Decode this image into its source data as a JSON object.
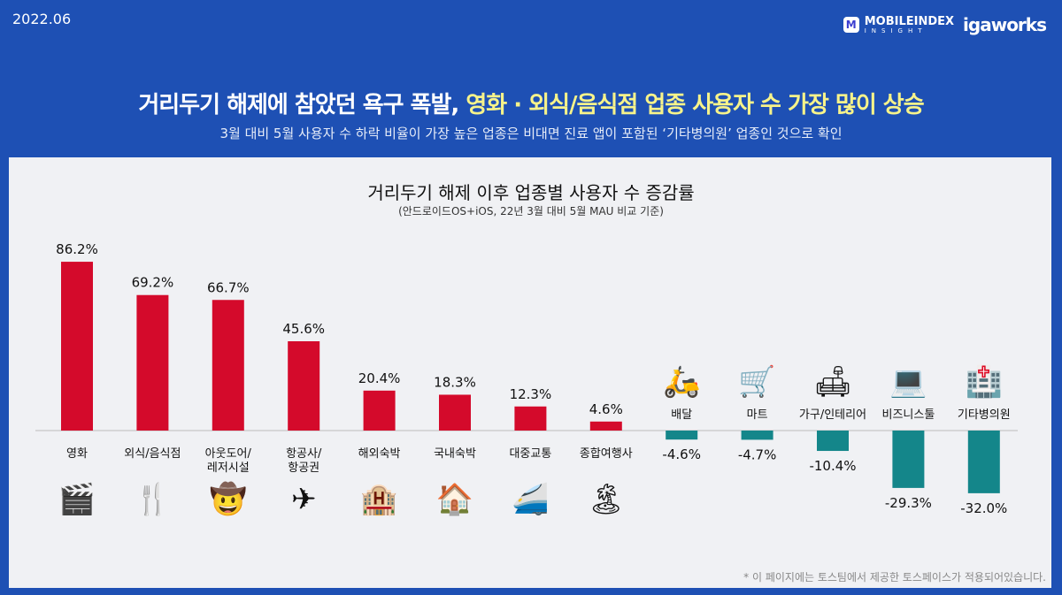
{
  "header": {
    "date": "2022.06",
    "logo_mobileindex": "MOBILEINDEX",
    "logo_insight": "INSIGHT",
    "logo_igaworks": "igaworks"
  },
  "title": {
    "main": "거리두기 해제에 참았던 욕구 폭발, ",
    "highlight": "영화 · 외식/음식점 업종 사용자 수 가장 많이 상승"
  },
  "subtitle": "3월 대비 5월 사용자 수 하락 비율이 가장 높은 업종은 비대면 진료 앱이 포함된 ‘기타병의원’ 업종인 것으로 확인",
  "footnote": "* 이 페이지에는 토스팀에서 제공한 토스페이스가 적용되어있습니다.",
  "colors": {
    "positive": "#d40a2b",
    "negative": "#14868a",
    "background": "#1e50b4",
    "panel": "#f0f1f4"
  },
  "chart_data": {
    "type": "bar",
    "title": "거리두기 해제 이후 업종별 사용자 수 증감률",
    "subtitle": "(안드로이드OS+iOS, 22년 3월 대비 5월 MAU 비교 기준)",
    "unit": "%",
    "categories": [
      "영화",
      "외식/음식점",
      "아웃도어/\n레저시설",
      "항공사/\n항공권",
      "해외숙박",
      "국내숙박",
      "대중교통",
      "종합여행사",
      "배달",
      "마트",
      "가구/인테리어",
      "비즈니스툴",
      "기타병의원"
    ],
    "values": [
      86.2,
      69.2,
      66.7,
      45.6,
      20.4,
      18.3,
      12.3,
      4.6,
      -4.6,
      -4.7,
      -10.4,
      -29.3,
      -32.0
    ],
    "labels": [
      "86.2%",
      "69.2%",
      "66.7%",
      "45.6%",
      "20.4%",
      "18.3%",
      "12.3%",
      "4.6%",
      "-4.6%",
      "-4.7%",
      "-10.4%",
      "-29.3%",
      "-32.0%"
    ],
    "icons": [
      "clapper-board-icon",
      "fork-knife-icon",
      "person-outdoor-icon",
      "airplane-icon",
      "hotel-icon",
      "house-icon",
      "train-icon",
      "palm-island-icon",
      "scooter-icon",
      "shopping-cart-icon",
      "sofa-lamp-icon",
      "laptop-icon",
      "hospital-icon"
    ],
    "icon_glyphs": [
      "🎬",
      "🍴",
      "🤠",
      "✈",
      "🏨",
      "🏠",
      "🚄",
      "🏝",
      "🛵",
      "🛒",
      "🛋",
      "💻",
      "🏥"
    ],
    "ylim": [
      -32,
      86.2
    ],
    "grid": false,
    "legend": "none"
  }
}
